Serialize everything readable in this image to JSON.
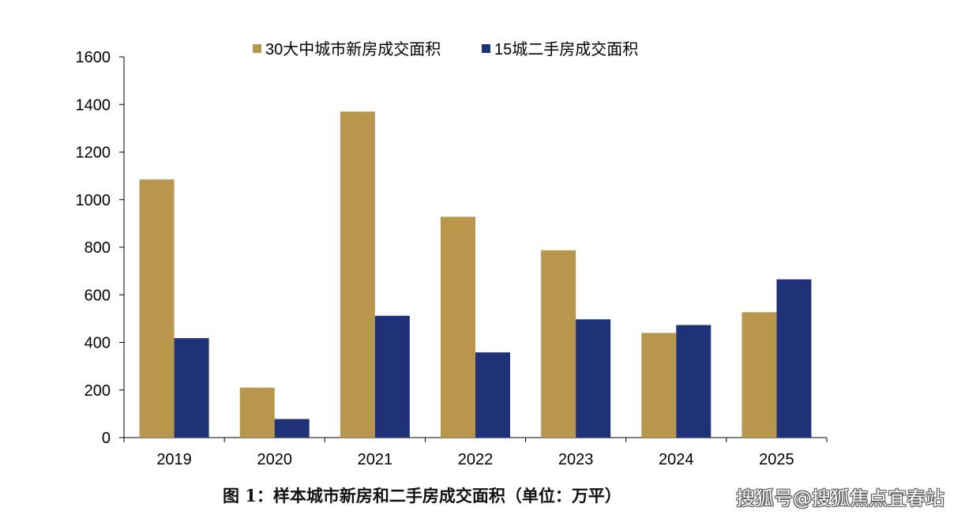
{
  "chart_data": {
    "type": "bar",
    "categories": [
      "2019",
      "2020",
      "2021",
      "2022",
      "2023",
      "2024",
      "2025"
    ],
    "series": [
      {
        "name": "30大中城市新房成交面积",
        "color": "#B8964C",
        "values": [
          1085,
          210,
          1370,
          928,
          787,
          440,
          527
        ]
      },
      {
        "name": "15城二手房成交面积",
        "color": "#1F3278",
        "values": [
          418,
          78,
          512,
          358,
          497,
          473,
          665
        ]
      }
    ],
    "ylim": [
      0,
      1600
    ],
    "yticks": [
      0,
      200,
      400,
      600,
      800,
      1000,
      1200,
      1400,
      1600
    ],
    "grid": false,
    "legend_position": "top"
  },
  "caption": "图 1：样本城市新房和二手房成交面积（单位：万平）",
  "watermark": "搜狐号@搜狐焦点宜春站"
}
